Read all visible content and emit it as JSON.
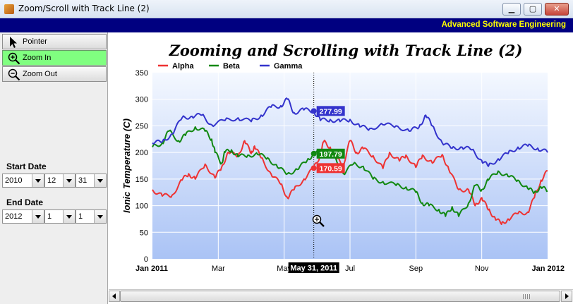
{
  "window": {
    "title": "Zoom/Scroll with Track Line (2)",
    "buttons": {
      "minimize": "▁",
      "maximize": "▢",
      "close": "✕"
    }
  },
  "banner": {
    "text": "Advanced Software Engineering"
  },
  "toolbar": {
    "pointer_label": "Pointer",
    "zoom_in_label": "Zoom In",
    "zoom_out_label": "Zoom Out",
    "active_tool": "zoom_in",
    "active_color": "#80ff80"
  },
  "date_range": {
    "start_label": "Start Date",
    "start": {
      "year": "2010",
      "month": "12",
      "day": "31"
    },
    "end_label": "End Date",
    "end": {
      "year": "2012",
      "month": "1",
      "day": "1"
    }
  },
  "track_line": {
    "date_label": "May 31, 2011",
    "values": [
      {
        "series": "Gamma",
        "value": 277.99,
        "label": "277.99"
      },
      {
        "series": "Beta",
        "value": 197.79,
        "label": "197.79"
      },
      {
        "series": "Alpha",
        "value": 170.59,
        "label": "170.59"
      }
    ]
  },
  "chart_data": {
    "type": "line",
    "title": "Zooming and Scrolling with Track Line (2)",
    "ylabel": "Ionic Temperature (C)",
    "xlabel": "",
    "ylim": [
      0,
      350
    ],
    "yticks": [
      "0",
      "50",
      "100",
      "150",
      "200",
      "250",
      "300",
      "350"
    ],
    "xlim_months": [
      0,
      12
    ],
    "xticks": [
      {
        "m": 0,
        "label": "Jan 2011",
        "bold": true
      },
      {
        "m": 2,
        "label": "Mar",
        "bold": false
      },
      {
        "m": 4,
        "label": "May",
        "bold": false
      },
      {
        "m": 6,
        "label": "Jul",
        "bold": false
      },
      {
        "m": 8,
        "label": "Sep",
        "bold": false
      },
      {
        "m": 10,
        "label": "Nov",
        "bold": false
      },
      {
        "m": 12,
        "label": "Jan 2012",
        "bold": true
      }
    ],
    "track_month": 4.9,
    "legend_position": "top-left",
    "grid": true,
    "series": [
      {
        "name": "Alpha",
        "color": "#ee3333",
        "points": [
          [
            0,
            130
          ],
          [
            0.3,
            118
          ],
          [
            0.6,
            120
          ],
          [
            0.9,
            148
          ],
          [
            1.1,
            160
          ],
          [
            1.3,
            150
          ],
          [
            1.6,
            178
          ],
          [
            1.9,
            152
          ],
          [
            2.1,
            172
          ],
          [
            2.3,
            200
          ],
          [
            2.6,
            193
          ],
          [
            2.8,
            222
          ],
          [
            3.0,
            198
          ],
          [
            3.1,
            212
          ],
          [
            3.3,
            190
          ],
          [
            3.6,
            160
          ],
          [
            3.9,
            140
          ],
          [
            4.1,
            115
          ],
          [
            4.3,
            130
          ],
          [
            4.6,
            150
          ],
          [
            4.9,
            170.59
          ],
          [
            5.1,
            195
          ],
          [
            5.2,
            220
          ],
          [
            5.4,
            210
          ],
          [
            5.6,
            188
          ],
          [
            5.8,
            178
          ],
          [
            6.0,
            222
          ],
          [
            6.2,
            200
          ],
          [
            6.4,
            207
          ],
          [
            6.7,
            194
          ],
          [
            7.0,
            170
          ],
          [
            7.2,
            200
          ],
          [
            7.5,
            184
          ],
          [
            7.7,
            195
          ],
          [
            8.0,
            172
          ],
          [
            8.2,
            195
          ],
          [
            8.5,
            180
          ],
          [
            8.8,
            196
          ],
          [
            9.0,
            168
          ],
          [
            9.3,
            130
          ],
          [
            9.6,
            130
          ],
          [
            9.8,
            100
          ],
          [
            10.0,
            115
          ],
          [
            10.2,
            92
          ],
          [
            10.4,
            78
          ],
          [
            10.6,
            65
          ],
          [
            10.8,
            75
          ],
          [
            11.1,
            85
          ],
          [
            11.4,
            88
          ],
          [
            11.6,
            115
          ],
          [
            11.8,
            148
          ],
          [
            12.0,
            165
          ]
        ]
      },
      {
        "name": "Beta",
        "color": "#118811",
        "points": [
          [
            0,
            210
          ],
          [
            0.3,
            218
          ],
          [
            0.5,
            240
          ],
          [
            0.8,
            222
          ],
          [
            1.0,
            232
          ],
          [
            1.3,
            248
          ],
          [
            1.6,
            240
          ],
          [
            1.8,
            225
          ],
          [
            1.9,
            200
          ],
          [
            2.1,
            180
          ],
          [
            2.2,
            200
          ],
          [
            2.4,
            205
          ],
          [
            2.6,
            192
          ],
          [
            2.9,
            195
          ],
          [
            3.2,
            196
          ],
          [
            3.5,
            190
          ],
          [
            3.8,
            172
          ],
          [
            4.1,
            160
          ],
          [
            4.4,
            168
          ],
          [
            4.7,
            185
          ],
          [
            4.9,
            197.79
          ],
          [
            5.1,
            200
          ],
          [
            5.3,
            205
          ],
          [
            5.5,
            195
          ],
          [
            5.8,
            160
          ],
          [
            6.1,
            178
          ],
          [
            6.4,
            174
          ],
          [
            6.7,
            150
          ],
          [
            7.0,
            145
          ],
          [
            7.4,
            138
          ],
          [
            7.7,
            135
          ],
          [
            8.0,
            125
          ],
          [
            8.2,
            105
          ],
          [
            8.4,
            100
          ],
          [
            8.7,
            93
          ],
          [
            8.9,
            80
          ],
          [
            9.1,
            98
          ],
          [
            9.3,
            80
          ],
          [
            9.6,
            105
          ],
          [
            9.8,
            138
          ],
          [
            10.0,
            130
          ],
          [
            10.2,
            148
          ],
          [
            10.5,
            165
          ],
          [
            10.8,
            155
          ],
          [
            11.1,
            148
          ],
          [
            11.4,
            132
          ],
          [
            11.6,
            125
          ],
          [
            11.8,
            135
          ],
          [
            12.0,
            128
          ]
        ]
      },
      {
        "name": "Gamma",
        "color": "#3333cc",
        "points": [
          [
            0,
            218
          ],
          [
            0.3,
            220
          ],
          [
            0.6,
            235
          ],
          [
            0.9,
            265
          ],
          [
            1.2,
            268
          ],
          [
            1.5,
            270
          ],
          [
            1.8,
            252
          ],
          [
            2.2,
            260
          ],
          [
            2.6,
            265
          ],
          [
            3.0,
            258
          ],
          [
            3.3,
            270
          ],
          [
            3.6,
            285
          ],
          [
            3.9,
            288
          ],
          [
            4.1,
            300
          ],
          [
            4.3,
            275
          ],
          [
            4.6,
            280
          ],
          [
            4.9,
            277.99
          ],
          [
            5.1,
            260
          ],
          [
            5.4,
            262
          ],
          [
            5.7,
            258
          ],
          [
            6.0,
            262
          ],
          [
            6.3,
            248
          ],
          [
            6.6,
            245
          ],
          [
            7.0,
            252
          ],
          [
            7.4,
            250
          ],
          [
            7.8,
            240
          ],
          [
            8.1,
            248
          ],
          [
            8.3,
            270
          ],
          [
            8.5,
            250
          ],
          [
            8.8,
            218
          ],
          [
            9.1,
            208
          ],
          [
            9.4,
            210
          ],
          [
            9.7,
            205
          ],
          [
            10.0,
            185
          ],
          [
            10.2,
            174
          ],
          [
            10.5,
            188
          ],
          [
            10.8,
            198
          ],
          [
            11.1,
            210
          ],
          [
            11.4,
            212
          ],
          [
            11.7,
            208
          ],
          [
            12.0,
            200
          ]
        ]
      }
    ]
  }
}
